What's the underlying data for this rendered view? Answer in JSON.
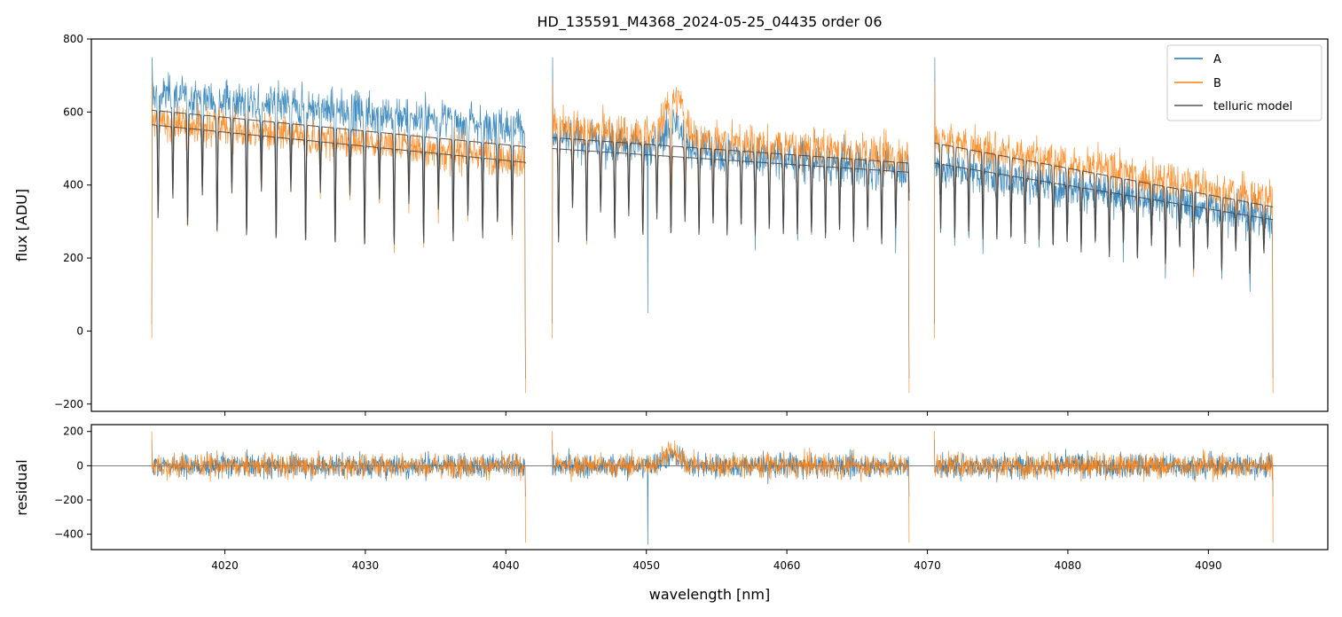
{
  "chart_data": [
    {
      "type": "line",
      "panel": "top",
      "title": "HD_135591_M4368_2024-05-25_04435  order 06",
      "xlabel": "",
      "ylabel": "flux [ADU]",
      "xlim": [
        4010.5,
        4098.5
      ],
      "ylim": [
        -220,
        800
      ],
      "yticks": [
        -200,
        0,
        200,
        400,
        600,
        800
      ],
      "yticklabels": [
        "−200",
        "0",
        "200",
        "400",
        "600",
        "800"
      ],
      "xticks": [
        4020,
        4030,
        4040,
        4050,
        4060,
        4070,
        4080,
        4090
      ],
      "legend": {
        "location": "top-right",
        "entries": [
          "A",
          "B",
          "telluric model"
        ]
      },
      "segments": [
        {
          "x_start": 4014.8,
          "x_end": 4041.4,
          "A_level_start": 650,
          "A_level_end": 560,
          "B_level_start": 575,
          "B_level_end": 470,
          "model_A_start": 605,
          "model_A_end": 505,
          "model_B_start": 565,
          "model_B_end": 462,
          "line_spacing_nm": 1.05
        },
        {
          "x_start": 4043.3,
          "x_end": 4068.7,
          "A_level_start": 530,
          "A_level_end": 440,
          "B_level_start": 560,
          "B_level_end": 480,
          "model_A_start": 500,
          "model_A_end": 435,
          "model_B_start": 530,
          "model_B_end": 460,
          "line_spacing_nm": 1.0
        },
        {
          "x_start": 4070.5,
          "x_end": 4094.6,
          "A_level_start": 450,
          "A_level_end": 310,
          "B_level_start": 530,
          "B_level_end": 360,
          "model_A_start": 460,
          "model_A_end": 305,
          "model_B_start": 515,
          "model_B_end": 340,
          "line_spacing_nm": 1.0
        }
      ],
      "series": [
        {
          "name": "A",
          "color": "#1f77b4"
        },
        {
          "name": "B",
          "color": "#ff7f0e"
        },
        {
          "name": "telluric model",
          "color": "#444444"
        }
      ]
    },
    {
      "type": "line",
      "panel": "bottom",
      "title": "",
      "xlabel": "wavelength [nm]",
      "ylabel": "residual",
      "xlim": [
        4010.5,
        4098.5
      ],
      "ylim": [
        -490,
        240
      ],
      "yticks": [
        -400,
        -200,
        0,
        200
      ],
      "yticklabels": [
        "−400",
        "−200",
        "0",
        "200"
      ],
      "xticks": [
        4020,
        4030,
        4040,
        4050,
        4060,
        4070,
        4080,
        4090
      ],
      "xticklabels": [
        "4020",
        "4030",
        "4040",
        "4050",
        "4060",
        "4070",
        "4080",
        "4090"
      ],
      "noise_amplitude": 40,
      "bump": {
        "center": 4051.8,
        "height": 75
      },
      "outlier": {
        "x": 4050.1,
        "y": -460
      },
      "series": [
        {
          "name": "A",
          "color": "#1f77b4"
        },
        {
          "name": "B",
          "color": "#ff7f0e"
        }
      ]
    }
  ]
}
